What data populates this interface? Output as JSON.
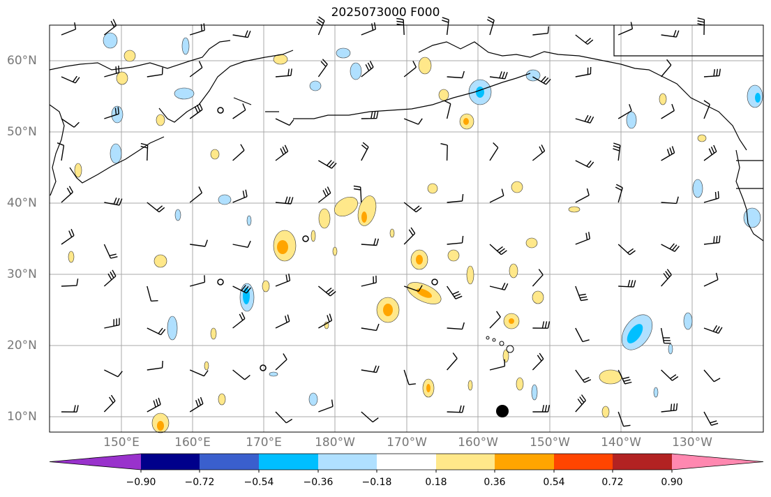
{
  "title": "2025073000 F000",
  "lat_labels": [
    "60°N",
    "50°N",
    "40°N",
    "30°N",
    "20°N",
    "10°N"
  ],
  "lon_labels": [
    "150°E",
    "160°E",
    "170°E",
    "180°W",
    "170°W",
    "160°W",
    "150°W",
    "140°W",
    "130°W"
  ],
  "colorbar": {
    "ticks": [
      "−0.90",
      "−0.72",
      "−0.54",
      "−0.36",
      "−0.18",
      "0.18",
      "0.36",
      "0.54",
      "0.72",
      "0.90"
    ],
    "colors": [
      "#9932cc",
      "#00008b",
      "#3a5fcd",
      "#00bfff",
      "#b0e0ff",
      "#ffffff",
      "#ffe88a",
      "#ffa500",
      "#ff4500",
      "#b22222",
      "#ff88b0"
    ]
  }
}
